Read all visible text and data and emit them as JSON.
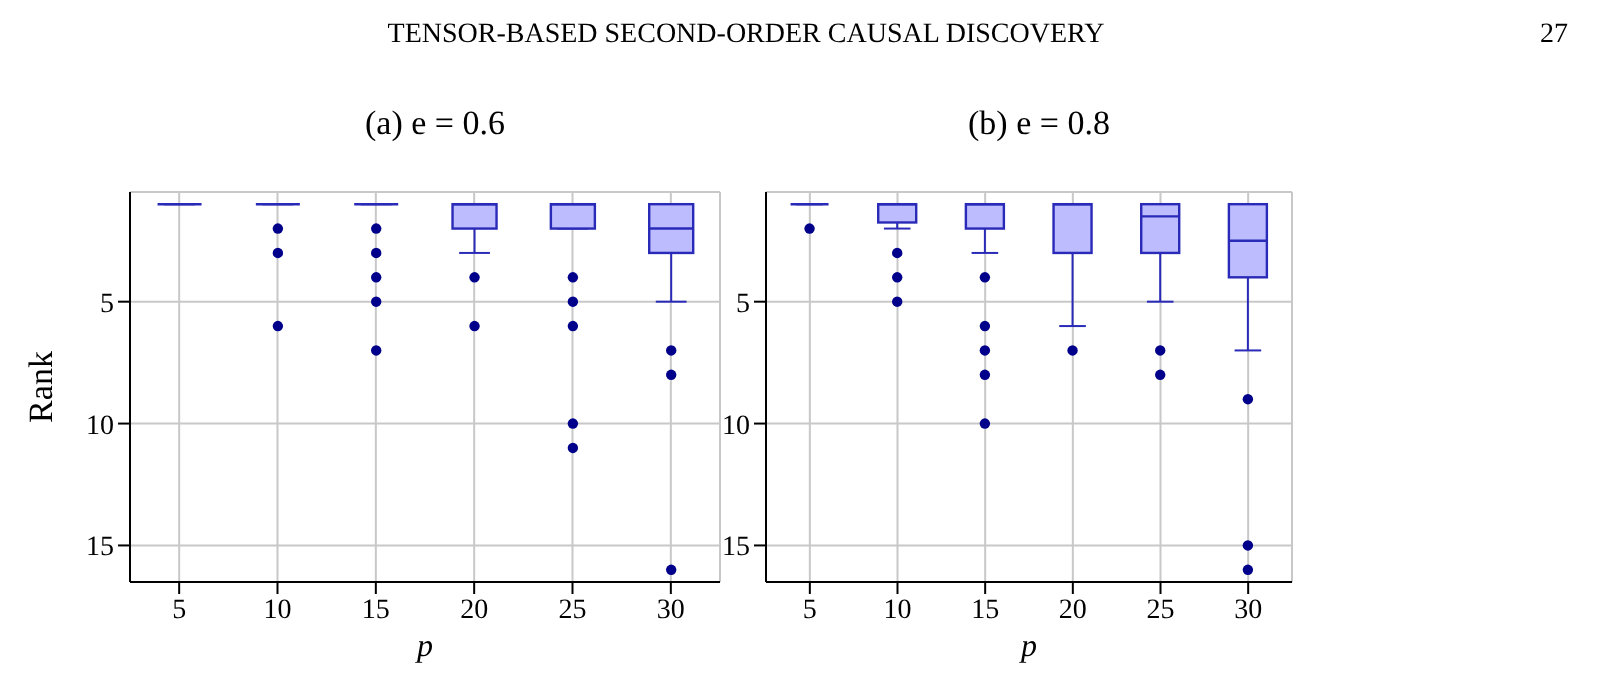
{
  "chart_data": [
    {
      "type": "box",
      "title": "(a) e = 0.6",
      "xlabel": "p",
      "ylabel": "Rank",
      "categories": [
        "5",
        "10",
        "15",
        "20",
        "25",
        "30"
      ],
      "color": "#2a2ab8",
      "ylim": [
        16.5,
        0.5
      ],
      "yticks": [
        5,
        10,
        15
      ],
      "grid": true,
      "annotations": [
        "TENSOR-BASED SECOND-ORDER CAUSAL DISCOVERY",
        "27"
      ],
      "boxes": [
        {
          "low": 1,
          "q1": 1,
          "median": 1,
          "q3": 1,
          "high": 1
        },
        {
          "low": 1,
          "q1": 1,
          "median": 1,
          "q3": 1,
          "high": 1,
          "outliers": [
            2,
            3,
            6
          ]
        },
        {
          "low": 1,
          "q1": 1,
          "median": 1,
          "q3": 1,
          "high": 1,
          "outliers": [
            2,
            3,
            4,
            5,
            7
          ]
        },
        {
          "low": 1,
          "q1": 1,
          "median": 1,
          "q3": 2,
          "high": 3,
          "outliers": [
            4,
            6
          ]
        },
        {
          "low": 1,
          "q1": 1,
          "median": 1,
          "q3": 2,
          "high": 2,
          "outliers": [
            4,
            5,
            6,
            10,
            11
          ]
        },
        {
          "low": 1,
          "q1": 1,
          "median": 2,
          "q3": 3,
          "high": 5,
          "outliers": [
            7,
            8,
            16
          ]
        }
      ]
    },
    {
      "type": "box",
      "title": "(b) e = 0.8",
      "xlabel": "p",
      "categories": [
        "5",
        "10",
        "15",
        "20",
        "25",
        "30"
      ],
      "color": "#2a2ab8",
      "ylim": [
        16.5,
        0.5
      ],
      "yticks": [
        5,
        10,
        15
      ],
      "grid": true,
      "boxes": [
        {
          "low": 1,
          "q1": 1,
          "median": 1,
          "q3": 1,
          "high": 1,
          "outliers": [
            2
          ]
        },
        {
          "low": 1,
          "q1": 1,
          "median": 1,
          "q3": 1.75,
          "high": 2,
          "outliers": [
            3,
            4,
            5
          ]
        },
        {
          "low": 1,
          "q1": 1,
          "median": 1,
          "q3": 2,
          "high": 3,
          "outliers": [
            4,
            6,
            7,
            8,
            10
          ]
        },
        {
          "low": 1,
          "q1": 1,
          "median": 1,
          "q3": 3,
          "high": 6,
          "outliers": [
            7
          ]
        },
        {
          "low": 1,
          "q1": 1,
          "median": 1.5,
          "q3": 3,
          "high": 5,
          "outliers": [
            7,
            8
          ]
        },
        {
          "low": 1,
          "q1": 1,
          "median": 2.5,
          "q3": 4,
          "high": 7,
          "outliers": [
            9,
            15,
            16
          ]
        }
      ]
    }
  ]
}
